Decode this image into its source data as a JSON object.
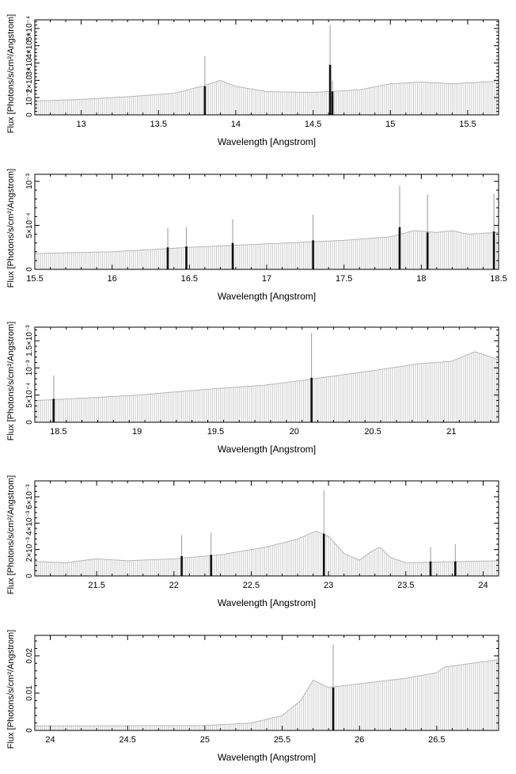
{
  "chart_data": [
    {
      "type": "bar",
      "xlabel": "Wavelength [Angstrom]",
      "ylabel": "Flux [Photons/s/cm²/Angstrom]",
      "xlim": [
        12.7,
        15.7
      ],
      "ylim": [
        0,
        0.00055
      ],
      "xticks": [
        {
          "v": 13,
          "label": "13"
        },
        {
          "v": 13.5,
          "label": "13.5"
        },
        {
          "v": 14,
          "label": "14"
        },
        {
          "v": 14.5,
          "label": "14.5"
        },
        {
          "v": 15,
          "label": "15"
        },
        {
          "v": 15.5,
          "label": "15.5"
        }
      ],
      "yticks": [
        {
          "v": 0,
          "label": "0"
        },
        {
          "v": 0.0001,
          "label": "10⁻⁴"
        },
        {
          "v": 0.0002,
          "label": "2×10⁻⁴"
        },
        {
          "v": 0.0003,
          "label": "3×10⁻⁴"
        },
        {
          "v": 0.0004,
          "label": "4×10⁻⁴"
        },
        {
          "v": 0.0005,
          "label": "5×10⁻⁴"
        }
      ],
      "continuum": [
        [
          12.7,
          8e-05
        ],
        [
          13.0,
          9e-05
        ],
        [
          13.3,
          0.000105
        ],
        [
          13.6,
          0.000125
        ],
        [
          13.8,
          0.00017
        ],
        [
          13.9,
          0.0002
        ],
        [
          14.0,
          0.000165
        ],
        [
          14.2,
          0.000135
        ],
        [
          14.5,
          0.00013
        ],
        [
          14.8,
          0.000145
        ],
        [
          15.0,
          0.00018
        ],
        [
          15.2,
          0.00019
        ],
        [
          15.4,
          0.00018
        ],
        [
          15.7,
          0.000195
        ]
      ],
      "lines": [
        {
          "x": 13.8,
          "y": 0.000165,
          "err": 0.00034
        },
        {
          "x": 14.61,
          "y": 0.00029,
          "err": 0.00052
        },
        {
          "x": 14.625,
          "y": 0.000135,
          "err": 0.0002
        }
      ]
    },
    {
      "type": "bar",
      "xlabel": "Wavelength [Angstrom]",
      "ylabel": "Flux [Photons/s/cm²/Angstrom]",
      "xlim": [
        15.5,
        18.5
      ],
      "ylim": [
        0,
        0.00108
      ],
      "xticks": [
        {
          "v": 15.5,
          "label": "15.5"
        },
        {
          "v": 16,
          "label": "16"
        },
        {
          "v": 16.5,
          "label": "16.5"
        },
        {
          "v": 17,
          "label": "17"
        },
        {
          "v": 17.5,
          "label": "17.5"
        },
        {
          "v": 18,
          "label": "18"
        },
        {
          "v": 18.5,
          "label": "18.5"
        }
      ],
      "yticks": [
        {
          "v": 0,
          "label": "0"
        },
        {
          "v": 0.0005,
          "label": "5×10⁻⁴"
        },
        {
          "v": 0.001,
          "label": "10⁻³"
        }
      ],
      "continuum": [
        [
          15.5,
          0.00018
        ],
        [
          16.0,
          0.0002
        ],
        [
          16.5,
          0.00025
        ],
        [
          17.0,
          0.00029
        ],
        [
          17.5,
          0.00033
        ],
        [
          17.8,
          0.00037
        ],
        [
          17.95,
          0.00044
        ],
        [
          18.1,
          0.00042
        ],
        [
          18.2,
          0.00044
        ],
        [
          18.3,
          0.0004
        ],
        [
          18.5,
          0.00042
        ]
      ],
      "lines": [
        {
          "x": 16.36,
          "y": 0.00025,
          "err": 0.00047
        },
        {
          "x": 16.48,
          "y": 0.00026,
          "err": 0.00048
        },
        {
          "x": 16.78,
          "y": 0.0003,
          "err": 0.00057
        },
        {
          "x": 17.3,
          "y": 0.00033,
          "err": 0.00062
        },
        {
          "x": 17.86,
          "y": 0.00048,
          "err": 0.00095
        },
        {
          "x": 18.04,
          "y": 0.00042,
          "err": 0.00085
        },
        {
          "x": 18.47,
          "y": 0.00043,
          "err": 0.00086
        }
      ]
    },
    {
      "type": "bar",
      "xlabel": "Wavelength [Angstrom]",
      "ylabel": "Flux [Photons/s/cm²/Angstrom]",
      "xlim": [
        18.35,
        21.3
      ],
      "ylim": [
        0,
        0.00175
      ],
      "xticks": [
        {
          "v": 18.5,
          "label": "18.5"
        },
        {
          "v": 19,
          "label": "19"
        },
        {
          "v": 19.5,
          "label": "19.5"
        },
        {
          "v": 20,
          "label": "20"
        },
        {
          "v": 20.5,
          "label": "20.5"
        },
        {
          "v": 21,
          "label": "21"
        }
      ],
      "yticks": [
        {
          "v": 0,
          "label": "0"
        },
        {
          "v": 0.0005,
          "label": "5×10⁻⁴"
        },
        {
          "v": 0.001,
          "label": "10⁻³"
        },
        {
          "v": 0.0015,
          "label": "1.5×10⁻³"
        }
      ],
      "continuum": [
        [
          18.35,
          0.0004
        ],
        [
          18.7,
          0.00045
        ],
        [
          19.0,
          0.0005
        ],
        [
          19.5,
          0.00062
        ],
        [
          19.8,
          0.00068
        ],
        [
          20.0,
          0.00075
        ],
        [
          20.5,
          0.00095
        ],
        [
          20.8,
          0.00108
        ],
        [
          21.0,
          0.00112
        ],
        [
          21.15,
          0.0013
        ],
        [
          21.3,
          0.00115
        ]
      ],
      "lines": [
        {
          "x": 18.47,
          "y": 0.00043,
          "err": 0.00086
        },
        {
          "x": 20.11,
          "y": 0.00082,
          "err": 0.00164
        }
      ]
    },
    {
      "type": "bar",
      "xlabel": "Wavelength [Angstrom]",
      "ylabel": "Flux [Photons/s/cm²/Angstrom]",
      "xlim": [
        21.1,
        24.1
      ],
      "ylim": [
        0,
        0.0072
      ],
      "xticks": [
        {
          "v": 21.5,
          "label": "21.5"
        },
        {
          "v": 22,
          "label": "22"
        },
        {
          "v": 22.5,
          "label": "22.5"
        },
        {
          "v": 23,
          "label": "23"
        },
        {
          "v": 23.5,
          "label": "23.5"
        },
        {
          "v": 24,
          "label": "24"
        }
      ],
      "yticks": [
        {
          "v": 0,
          "label": "0"
        },
        {
          "v": 0.002,
          "label": "2×10⁻³"
        },
        {
          "v": 0.004,
          "label": "4×10⁻³"
        },
        {
          "v": 0.006,
          "label": "6×10⁻³"
        }
      ],
      "continuum": [
        [
          21.1,
          0.0011
        ],
        [
          21.3,
          0.001
        ],
        [
          21.5,
          0.0013
        ],
        [
          21.7,
          0.00115
        ],
        [
          22.0,
          0.0013
        ],
        [
          22.3,
          0.0016
        ],
        [
          22.6,
          0.0022
        ],
        [
          22.8,
          0.0028
        ],
        [
          22.92,
          0.0034
        ],
        [
          23.0,
          0.003
        ],
        [
          23.1,
          0.0017
        ],
        [
          23.2,
          0.0012
        ],
        [
          23.27,
          0.0018
        ],
        [
          23.33,
          0.0022
        ],
        [
          23.4,
          0.0014
        ],
        [
          23.5,
          0.001
        ],
        [
          24.1,
          0.00115
        ]
      ],
      "lines": [
        {
          "x": 22.05,
          "y": 0.0015,
          "err": 0.0031
        },
        {
          "x": 22.24,
          "y": 0.0016,
          "err": 0.0033
        },
        {
          "x": 22.97,
          "y": 0.0032,
          "err": 0.0065
        },
        {
          "x": 23.66,
          "y": 0.0011,
          "err": 0.0022
        },
        {
          "x": 23.82,
          "y": 0.0011,
          "err": 0.0024
        }
      ]
    },
    {
      "type": "bar",
      "xlabel": "Wavelength [Angstrom]",
      "ylabel": "Flux [Photons/s/cm²/Angstrom]",
      "xlim": [
        23.9,
        26.9
      ],
      "ylim": [
        0,
        0.0255
      ],
      "xticks": [
        {
          "v": 24,
          "label": "24"
        },
        {
          "v": 24.5,
          "label": "24.5"
        },
        {
          "v": 25,
          "label": "25"
        },
        {
          "v": 25.5,
          "label": "25.5"
        },
        {
          "v": 26,
          "label": "26"
        },
        {
          "v": 26.5,
          "label": "26.5"
        }
      ],
      "yticks": [
        {
          "v": 0,
          "label": "0"
        },
        {
          "v": 0.01,
          "label": "0.01"
        },
        {
          "v": 0.02,
          "label": "0.02"
        }
      ],
      "continuum": [
        [
          23.9,
          0.0012
        ],
        [
          25.0,
          0.0013
        ],
        [
          25.3,
          0.002
        ],
        [
          25.5,
          0.004
        ],
        [
          25.62,
          0.008
        ],
        [
          25.7,
          0.0135
        ],
        [
          25.75,
          0.0125
        ],
        [
          25.8,
          0.0115
        ],
        [
          26.0,
          0.0125
        ],
        [
          26.3,
          0.014
        ],
        [
          26.5,
          0.0155
        ],
        [
          26.55,
          0.017
        ],
        [
          26.9,
          0.019
        ]
      ],
      "lines": [
        {
          "x": 25.83,
          "y": 0.0115,
          "err": 0.023
        }
      ]
    }
  ]
}
